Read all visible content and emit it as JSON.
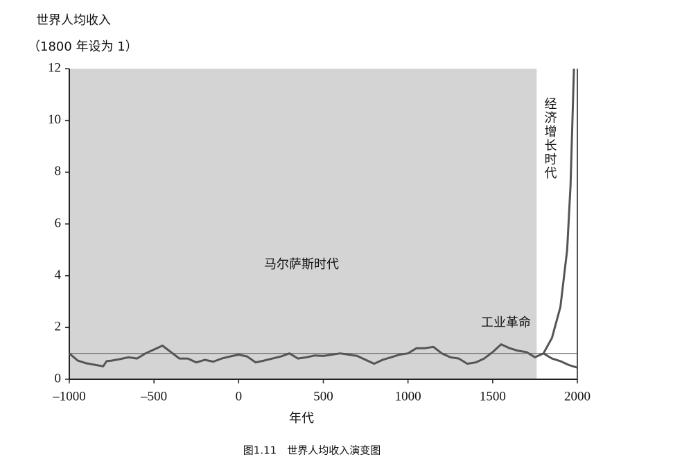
{
  "chart_data": {
    "type": "line",
    "y_label_lines": [
      "世界人均收入",
      "（1800 年设为 1）"
    ],
    "x_label": "年代",
    "caption": "图1.11　世界人均收入演变图",
    "annotations": [
      "马尔萨斯时代",
      "工业革命",
      "经济增长时代"
    ],
    "shaded_span": [
      -1000,
      1760
    ],
    "shade_color": "#d4d4d4",
    "reference_line": 1,
    "xlim": [
      -1000,
      2000
    ],
    "xticks": [
      {
        "value": -1000,
        "label": "–1000"
      },
      {
        "value": -500,
        "label": "–500"
      },
      0,
      500,
      1000,
      1500,
      2000
    ],
    "ylim": [
      0,
      12
    ],
    "yticks": [
      0,
      2,
      4,
      6,
      8,
      10,
      12
    ],
    "series": [
      {
        "color": "#555555",
        "x": [
          -1000,
          -950,
          -900,
          -850,
          -800,
          -780,
          -750,
          -700,
          -650,
          -600,
          -550,
          -500,
          -450,
          -400,
          -350,
          -300,
          -250,
          -200,
          -150,
          -100,
          -50,
          0,
          50,
          100,
          150,
          200,
          250,
          300,
          350,
          400,
          450,
          500,
          550,
          600,
          650,
          700,
          750,
          800,
          850,
          900,
          950,
          1000,
          1050,
          1100,
          1150,
          1200,
          1250,
          1300,
          1350,
          1400,
          1450,
          1500,
          1550,
          1600,
          1650,
          1700,
          1750,
          1800
        ],
        "values": [
          1.0,
          0.72,
          0.62,
          0.56,
          0.5,
          0.7,
          0.72,
          0.78,
          0.85,
          0.8,
          1.0,
          1.15,
          1.3,
          1.05,
          0.8,
          0.8,
          0.65,
          0.75,
          0.68,
          0.8,
          0.88,
          0.95,
          0.88,
          0.65,
          0.72,
          0.8,
          0.88,
          1.0,
          0.8,
          0.85,
          0.92,
          0.9,
          0.95,
          1.0,
          0.95,
          0.9,
          0.75,
          0.6,
          0.75,
          0.85,
          0.95,
          1.0,
          1.2,
          1.2,
          1.25,
          1.0,
          0.85,
          0.8,
          0.6,
          0.65,
          0.8,
          1.05,
          1.35,
          1.2,
          1.1,
          1.05,
          0.85,
          1.0
        ]
      },
      {
        "color": "#555555",
        "x": [
          1800,
          1850,
          1900,
          1940,
          1960,
          1980
        ],
        "values": [
          1.0,
          1.6,
          2.8,
          5,
          7.5,
          12
        ]
      },
      {
        "color": "#555555",
        "x": [
          1800,
          1850,
          1900,
          1950,
          2000
        ],
        "values": [
          1.0,
          0.8,
          0.7,
          0.55,
          0.45
        ]
      }
    ]
  }
}
